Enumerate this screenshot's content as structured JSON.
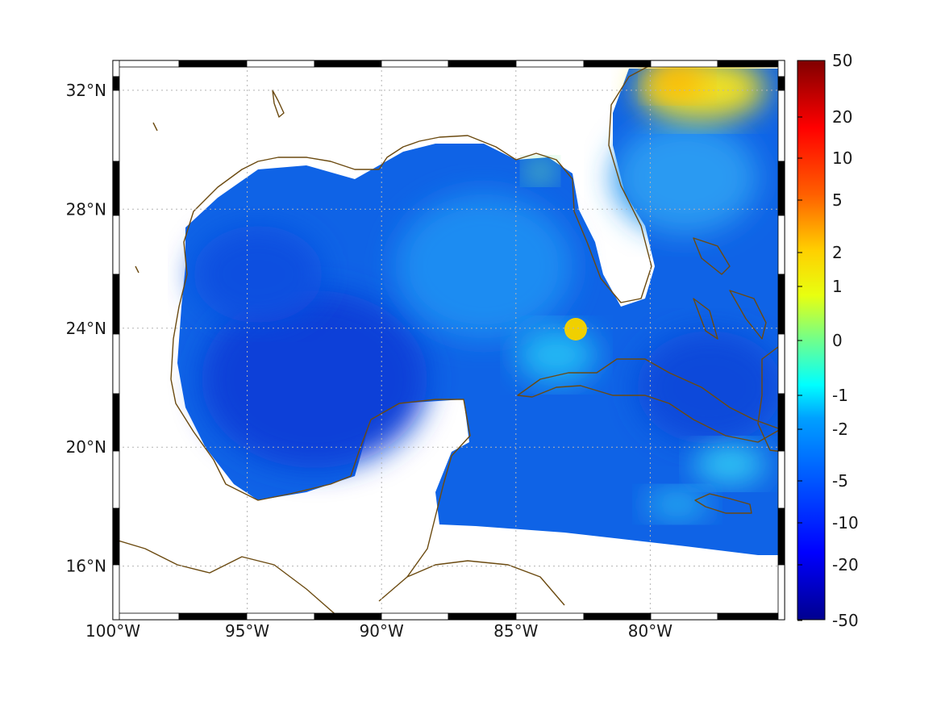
{
  "map": {
    "x_ticks": [
      "100°W",
      "95°W",
      "90°W",
      "85°W",
      "80°W"
    ],
    "y_ticks": [
      "32°N",
      "28°N",
      "24°N",
      "20°N",
      "16°N"
    ],
    "x_tick_values": [
      -100,
      -95,
      -90,
      -85,
      -80
    ],
    "y_tick_values": [
      32,
      28,
      24,
      20,
      16
    ],
    "lon_range": [
      -100,
      -75
    ],
    "lat_range": [
      14.2,
      33
    ],
    "grid": true,
    "coastline_color": "#6b4a10"
  },
  "colorbar": {
    "labels": [
      "50",
      "20",
      "10",
      "5",
      "2",
      "1",
      "0",
      "-1",
      "-2",
      "-5",
      "-10",
      "-20",
      "-50"
    ],
    "colormap": "jet"
  }
}
